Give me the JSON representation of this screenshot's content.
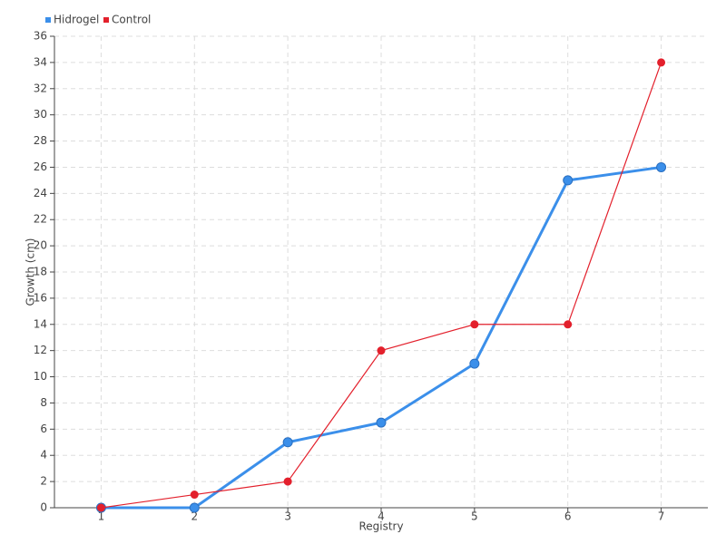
{
  "chart_data": {
    "type": "line",
    "x_label": "Registry",
    "y_label": "Growth (cm)",
    "x": [
      1,
      2,
      3,
      4,
      5,
      6,
      7
    ],
    "series": [
      {
        "name": "Hidrogel",
        "color": "#3b8fea",
        "values": [
          0,
          0,
          5,
          6.5,
          11,
          25,
          26
        ]
      },
      {
        "name": "Control",
        "color": "#e3202c",
        "values": [
          0,
          1,
          2,
          12,
          14,
          14,
          34
        ]
      }
    ],
    "xlim": [
      0.5,
      7.5
    ],
    "xticks": [
      1,
      2,
      3,
      4,
      5,
      6,
      7
    ],
    "ylim": [
      0,
      36
    ],
    "yticks": [
      0,
      2,
      4,
      6,
      8,
      10,
      12,
      14,
      16,
      18,
      20,
      22,
      24,
      26,
      28,
      30,
      32,
      34,
      36
    ],
    "grid": true,
    "legend": "top-left"
  }
}
